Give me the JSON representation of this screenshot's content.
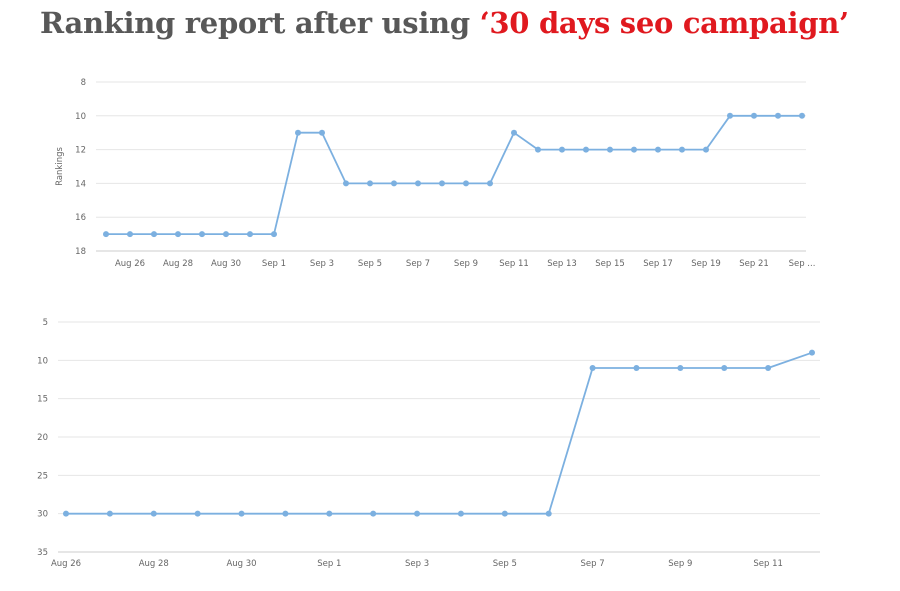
{
  "title": {
    "main": "Ranking report after using ",
    "accent": "‘30 days seo campaign’",
    "accent_color": "#e0191f",
    "main_color": "#585858"
  },
  "chart_data": [
    {
      "type": "line",
      "title": "",
      "ylabel": "Rankings",
      "y_reversed": true,
      "ylim": [
        8,
        18
      ],
      "y_ticks": [
        8,
        10,
        12,
        14,
        16,
        18
      ],
      "x_tick_labels": [
        "Aug 26",
        "Aug 28",
        "Aug 30",
        "Sep 1",
        "Sep 3",
        "Sep 5",
        "Sep 7",
        "Sep 9",
        "Sep 11",
        "Sep 13",
        "Sep 15",
        "Sep 17",
        "Sep 19",
        "Sep 21",
        "Sep ..."
      ],
      "x": [
        "Aug 25",
        "Aug 26",
        "Aug 27",
        "Aug 28",
        "Aug 29",
        "Aug 30",
        "Aug 31",
        "Sep 1",
        "Sep 2",
        "Sep 3",
        "Sep 4",
        "Sep 5",
        "Sep 6",
        "Sep 7",
        "Sep 8",
        "Sep 9",
        "Sep 10",
        "Sep 11",
        "Sep 12",
        "Sep 13",
        "Sep 14",
        "Sep 15",
        "Sep 16",
        "Sep 17",
        "Sep 18",
        "Sep 19",
        "Sep 20",
        "Sep 21",
        "Sep 22",
        "Sep 23"
      ],
      "series": [
        {
          "values": [
            17,
            17,
            17,
            17,
            17,
            17,
            17,
            17,
            11,
            11,
            14,
            14,
            14,
            14,
            14,
            14,
            14,
            11,
            12,
            12,
            12,
            12,
            12,
            12,
            12,
            12,
            10,
            10,
            10,
            10
          ],
          "color": "#7cb0e0"
        }
      ],
      "grid": true
    },
    {
      "type": "line",
      "title": "",
      "ylabel": "",
      "y_reversed": true,
      "ylim": [
        5,
        35
      ],
      "y_ticks": [
        5,
        10,
        15,
        20,
        25,
        30,
        35
      ],
      "y_tick_labels": [
        "5",
        "10",
        "15",
        "20",
        "25",
        "30",
        "35"
      ],
      "x_tick_labels": [
        "Aug 26",
        "Aug 28",
        "Aug 30",
        "Sep 1",
        "Sep 3",
        "Sep 5",
        "Sep 7",
        "Sep 9",
        "Sep 11"
      ],
      "x": [
        "Aug 26",
        "Aug 27",
        "Aug 28",
        "Aug 29",
        "Aug 30",
        "Aug 31",
        "Sep 1",
        "Sep 2",
        "Sep 3",
        "Sep 4",
        "Sep 5",
        "Sep 6",
        "Sep 7",
        "Sep 8",
        "Sep 9",
        "Sep 10",
        "Sep 11",
        "Sep 12"
      ],
      "series": [
        {
          "values": [
            30,
            30,
            30,
            30,
            30,
            30,
            30,
            30,
            30,
            30,
            30,
            30,
            11,
            11,
            11,
            11,
            11,
            9
          ],
          "color": "#7cb0e0"
        }
      ],
      "grid": true
    }
  ]
}
